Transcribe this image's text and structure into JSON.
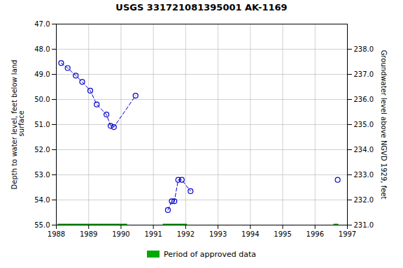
{
  "chart_data": {
    "type": "line",
    "title": "USGS 331721081395001 AK-1169",
    "ylabel": "Depth to water level, feet below land\n surface",
    "y2label": "Groundwater level above NGVD 1929, feet",
    "xlim": [
      1988,
      1997
    ],
    "xticks": [
      1988,
      1989,
      1990,
      1991,
      1992,
      1993,
      1994,
      1995,
      1996,
      1997
    ],
    "ylim": [
      55,
      47
    ],
    "yticks": [
      {
        "value": 47,
        "label": "47.0"
      },
      {
        "value": 48,
        "label": "48.0"
      },
      {
        "value": 49,
        "label": "49.0"
      },
      {
        "value": 50,
        "label": "50.0"
      },
      {
        "value": 51,
        "label": "51.0"
      },
      {
        "value": 52,
        "label": "52.0"
      },
      {
        "value": 53,
        "label": "53.0"
      },
      {
        "value": 54,
        "label": "54.0"
      },
      {
        "value": 55,
        "label": "55.0"
      }
    ],
    "y2lim": [
      231,
      239
    ],
    "y2ticks": [
      {
        "value": 231,
        "label": "231.0"
      },
      {
        "value": 232,
        "label": "232.0"
      },
      {
        "value": 233,
        "label": "233.0"
      },
      {
        "value": 234,
        "label": "234.0"
      },
      {
        "value": 235,
        "label": "235.0"
      },
      {
        "value": 236,
        "label": "236.0"
      },
      {
        "value": 237,
        "label": "237.0"
      },
      {
        "value": 238,
        "label": "238.0"
      }
    ],
    "grid": true,
    "legend": "bottom",
    "series": [
      {
        "color": "#0000cc",
        "marker": "circle",
        "line_style": "dashed",
        "x": [
          1988.15,
          1988.35,
          1988.6,
          1988.8,
          1989.05,
          1989.25,
          1989.55,
          1989.68,
          1989.78,
          1990.45
        ],
        "values": [
          48.55,
          48.75,
          49.05,
          49.3,
          49.65,
          50.2,
          50.6,
          51.05,
          51.1,
          49.85
        ]
      },
      {
        "color": "#0000cc",
        "marker": "circle",
        "line_style": "dashed",
        "x": [
          1991.45,
          1991.57,
          1991.65,
          1991.77,
          1991.88,
          1992.15
        ],
        "values": [
          54.4,
          54.05,
          54.05,
          53.2,
          53.2,
          53.65
        ]
      },
      {
        "color": "#0000cc",
        "marker": "circle",
        "line_style": "dashed",
        "x": [
          1996.7
        ],
        "values": [
          53.2
        ]
      },
      {
        "name": "Period of approved data",
        "type": "interval",
        "color": "#00aa00",
        "start": [
          1988.05,
          1991.3,
          1996.58
        ],
        "end": [
          1990.2,
          1992.05,
          1996.73
        ],
        "values": [
          55,
          55,
          55
        ]
      }
    ]
  }
}
